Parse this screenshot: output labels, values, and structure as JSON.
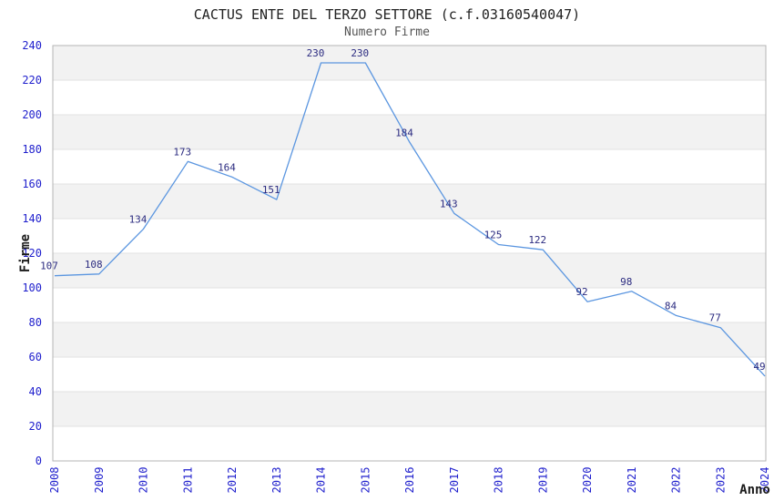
{
  "chart_data": {
    "type": "line",
    "title": "CACTUS ENTE DEL TERZO SETTORE (c.f.03160540047)",
    "subtitle": "Numero Firme",
    "xlabel": "Anno",
    "ylabel": "Firme",
    "categories": [
      "2008",
      "2009",
      "2010",
      "2011",
      "2012",
      "2013",
      "2014",
      "2015",
      "2016",
      "2017",
      "2018",
      "2019",
      "2020",
      "2021",
      "2022",
      "2023",
      "2024"
    ],
    "values": [
      107,
      108,
      134,
      173,
      164,
      151,
      230,
      230,
      184,
      143,
      125,
      122,
      92,
      98,
      84,
      77,
      49
    ],
    "ylim": [
      0,
      240
    ],
    "ytick_step": 20,
    "yticks": [
      0,
      20,
      40,
      60,
      80,
      100,
      120,
      140,
      160,
      180,
      200,
      220,
      240
    ],
    "grid": "horizontal",
    "band_pattern": "alternating gray bands every 20 units (20-40, 60-80, 100-120, 140-160, 180-200, 220-240)",
    "legend": "none",
    "markers": "none",
    "data_labels": "above each point",
    "colors": {
      "line": "#5b96e0",
      "tick_label": "#2020cd",
      "data_label": "#2b2b80",
      "band": "#f2f2f2",
      "gridline": "#e2e2e2",
      "plot_border": "#b4b4b4",
      "title": "#222222",
      "subtitle": "#555555",
      "axis_title": "#1a1a1a",
      "background": "#ffffff"
    }
  }
}
